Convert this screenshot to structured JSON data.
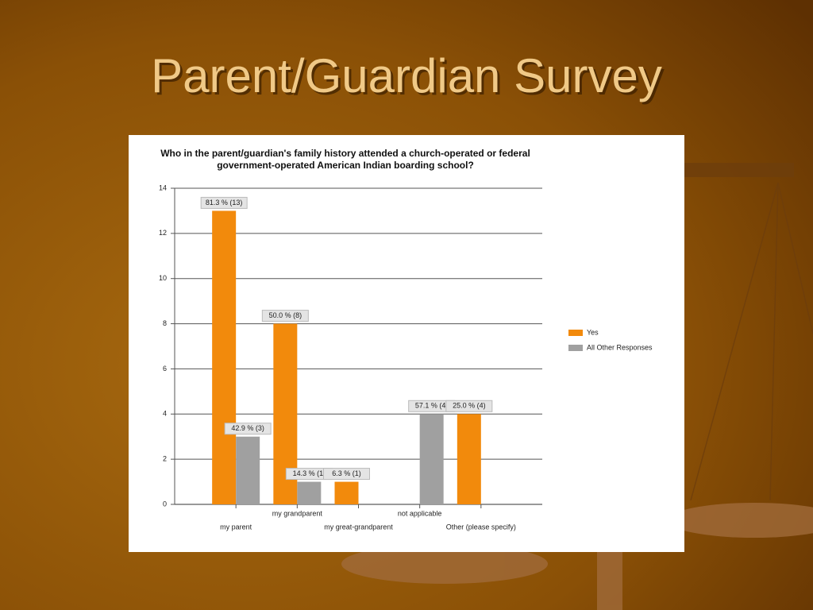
{
  "slide_title": "Parent/Guardian Survey",
  "chart_data": {
    "type": "bar",
    "title": "Who in the parent/guardian's family history attended a church-operated or federal government-operated American Indian boarding school?",
    "categories": [
      "my parent",
      "my grandparent",
      "my great-grandparent",
      "not applicable",
      "Other (please specify)"
    ],
    "series": [
      {
        "name": "Yes",
        "color": "#f28a0c",
        "values": [
          13,
          8,
          1,
          null,
          4
        ],
        "value_labels": [
          "81.3 % (13)",
          "50.0 % (8)",
          "6.3 % (1)",
          null,
          "25.0 % (4)"
        ]
      },
      {
        "name": "All Other Responses",
        "color": "#a0a0a0",
        "values": [
          3,
          1,
          null,
          4,
          null
        ],
        "value_labels": [
          "42.9 % (3)",
          "14.3 % (1)",
          null,
          "57.1 % (4)",
          null
        ]
      }
    ],
    "ylim": [
      0,
      14
    ],
    "yticks": [
      0,
      2,
      4,
      6,
      8,
      10,
      12,
      14
    ],
    "grid": true,
    "legend": "right"
  }
}
